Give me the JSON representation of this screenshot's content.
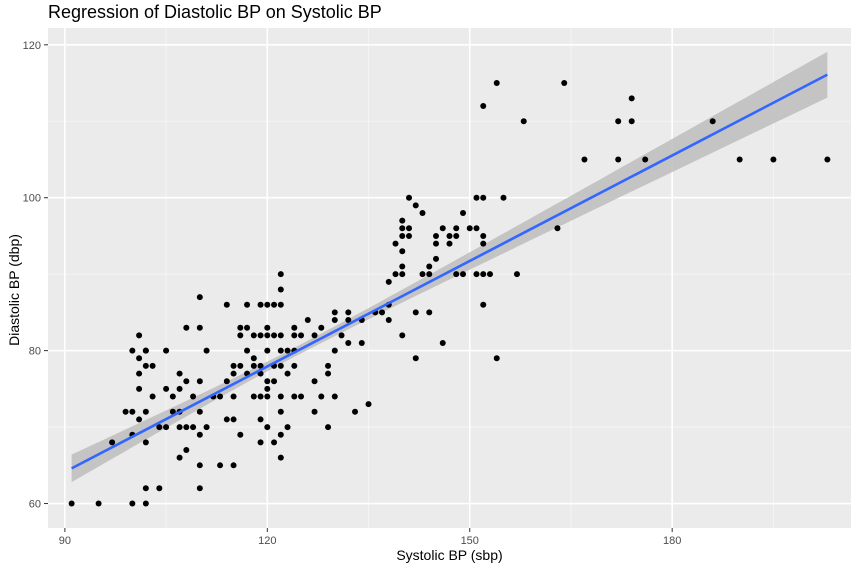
{
  "chart_data": {
    "type": "scatter",
    "title": "Regression of Diastolic BP on Systolic BP",
    "xlabel": "Systolic BP (sbp)",
    "ylabel": "Diastolic BP (dbp)",
    "xlim": [
      87.5,
      206.5
    ],
    "ylim": [
      56.8,
      122.2
    ],
    "x_ticks": [
      90,
      120,
      150,
      180
    ],
    "y_ticks": [
      60,
      80,
      100,
      120
    ],
    "x_tick_labels": [
      "90",
      "120",
      "150",
      "180"
    ],
    "y_tick_labels": [
      "60",
      "80",
      "100",
      "120"
    ],
    "grid": true,
    "regression": {
      "x": [
        91,
        203
      ],
      "y": [
        64.6,
        116.1
      ],
      "ci_halfwidth_ends": [
        1.8,
        3.0
      ],
      "ci_halfwidth_mid": 0.6,
      "x_mean": 124,
      "line_color": "#3366ff",
      "ribbon_color": "#bdbdbd"
    },
    "point_color": "#000000",
    "panel_color": "#ebebeb",
    "points": [
      [
        91,
        60
      ],
      [
        95,
        60
      ],
      [
        97,
        68
      ],
      [
        99,
        72
      ],
      [
        100,
        60
      ],
      [
        100,
        69
      ],
      [
        100,
        72
      ],
      [
        100,
        80
      ],
      [
        101,
        71
      ],
      [
        101,
        75
      ],
      [
        101,
        77
      ],
      [
        101,
        79
      ],
      [
        101,
        82
      ],
      [
        102,
        60
      ],
      [
        102,
        62
      ],
      [
        102,
        68
      ],
      [
        102,
        72
      ],
      [
        102,
        78
      ],
      [
        102,
        80
      ],
      [
        102,
        80
      ],
      [
        103,
        74
      ],
      [
        103,
        78
      ],
      [
        104,
        70
      ],
      [
        104,
        62
      ],
      [
        105,
        70
      ],
      [
        105,
        75
      ],
      [
        105,
        80
      ],
      [
        106,
        72
      ],
      [
        106,
        74
      ],
      [
        107,
        66
      ],
      [
        107,
        70
      ],
      [
        107,
        72
      ],
      [
        107,
        75
      ],
      [
        107,
        77
      ],
      [
        108,
        67
      ],
      [
        108,
        70
      ],
      [
        108,
        76
      ],
      [
        108,
        83
      ],
      [
        109,
        70
      ],
      [
        109,
        74
      ],
      [
        110,
        62
      ],
      [
        110,
        65
      ],
      [
        110,
        69
      ],
      [
        110,
        72
      ],
      [
        110,
        76
      ],
      [
        110,
        83
      ],
      [
        110,
        87
      ],
      [
        111,
        70
      ],
      [
        111,
        80
      ],
      [
        112,
        74
      ],
      [
        113,
        65
      ],
      [
        113,
        74
      ],
      [
        114,
        71
      ],
      [
        114,
        76
      ],
      [
        114,
        86
      ],
      [
        115,
        65
      ],
      [
        115,
        71
      ],
      [
        115,
        74
      ],
      [
        115,
        77
      ],
      [
        115,
        78
      ],
      [
        116,
        69
      ],
      [
        116,
        78
      ],
      [
        116,
        82
      ],
      [
        116,
        83
      ],
      [
        117,
        80
      ],
      [
        117,
        83
      ],
      [
        117,
        86
      ],
      [
        117,
        77
      ],
      [
        118,
        74
      ],
      [
        118,
        78
      ],
      [
        118,
        79
      ],
      [
        118,
        82
      ],
      [
        119,
        68
      ],
      [
        119,
        71
      ],
      [
        119,
        74
      ],
      [
        119,
        77
      ],
      [
        119,
        78
      ],
      [
        119,
        82
      ],
      [
        119,
        86
      ],
      [
        120,
        70
      ],
      [
        120,
        74
      ],
      [
        120,
        75
      ],
      [
        120,
        76
      ],
      [
        120,
        80
      ],
      [
        120,
        83
      ],
      [
        120,
        86
      ],
      [
        120,
        82
      ],
      [
        121,
        68
      ],
      [
        121,
        76
      ],
      [
        121,
        78
      ],
      [
        121,
        82
      ],
      [
        121,
        86
      ],
      [
        122,
        66
      ],
      [
        122,
        69
      ],
      [
        122,
        72
      ],
      [
        122,
        74
      ],
      [
        122,
        78
      ],
      [
        122,
        80
      ],
      [
        122,
        82
      ],
      [
        122,
        86
      ],
      [
        122,
        88
      ],
      [
        122,
        90
      ],
      [
        123,
        70
      ],
      [
        123,
        77
      ],
      [
        123,
        80
      ],
      [
        124,
        74
      ],
      [
        124,
        78
      ],
      [
        124,
        80
      ],
      [
        124,
        82
      ],
      [
        124,
        83
      ],
      [
        125,
        74
      ],
      [
        125,
        82
      ],
      [
        126,
        84
      ],
      [
        127,
        72
      ],
      [
        127,
        76
      ],
      [
        127,
        82
      ],
      [
        128,
        74
      ],
      [
        128,
        83
      ],
      [
        129,
        70
      ],
      [
        129,
        77
      ],
      [
        129,
        78
      ],
      [
        130,
        74
      ],
      [
        130,
        80
      ],
      [
        130,
        84
      ],
      [
        130,
        85
      ],
      [
        131,
        82
      ],
      [
        132,
        81
      ],
      [
        132,
        84
      ],
      [
        132,
        85
      ],
      [
        133,
        72
      ],
      [
        134,
        81
      ],
      [
        134,
        84
      ],
      [
        135,
        73
      ],
      [
        136,
        85
      ],
      [
        137,
        85
      ],
      [
        138,
        84
      ],
      [
        138,
        86
      ],
      [
        138,
        89
      ],
      [
        139,
        90
      ],
      [
        139,
        94
      ],
      [
        140,
        82
      ],
      [
        140,
        90
      ],
      [
        140,
        91
      ],
      [
        140,
        93
      ],
      [
        140,
        95
      ],
      [
        140,
        96
      ],
      [
        140,
        97
      ],
      [
        141,
        95
      ],
      [
        141,
        96
      ],
      [
        141,
        100
      ],
      [
        142,
        79
      ],
      [
        142,
        85
      ],
      [
        142,
        99
      ],
      [
        143,
        90
      ],
      [
        143,
        98
      ],
      [
        144,
        85
      ],
      [
        144,
        90
      ],
      [
        144,
        91
      ],
      [
        145,
        92
      ],
      [
        145,
        94
      ],
      [
        145,
        95
      ],
      [
        146,
        81
      ],
      [
        146,
        96
      ],
      [
        147,
        94
      ],
      [
        147,
        95
      ],
      [
        148,
        90
      ],
      [
        148,
        95
      ],
      [
        148,
        96
      ],
      [
        149,
        90
      ],
      [
        149,
        98
      ],
      [
        150,
        96
      ],
      [
        151,
        90
      ],
      [
        151,
        100
      ],
      [
        151,
        96
      ],
      [
        152,
        86
      ],
      [
        152,
        90
      ],
      [
        152,
        94
      ],
      [
        152,
        95
      ],
      [
        152,
        100
      ],
      [
        152,
        112
      ],
      [
        153,
        90
      ],
      [
        154,
        79
      ],
      [
        154,
        115
      ],
      [
        155,
        100
      ],
      [
        157,
        90
      ],
      [
        158,
        110
      ],
      [
        163,
        96
      ],
      [
        164,
        115
      ],
      [
        167,
        105
      ],
      [
        172,
        105
      ],
      [
        172,
        110
      ],
      [
        174,
        110
      ],
      [
        174,
        113
      ],
      [
        176,
        105
      ],
      [
        186,
        110
      ],
      [
        190,
        105
      ],
      [
        195,
        105
      ],
      [
        203,
        105
      ]
    ]
  }
}
